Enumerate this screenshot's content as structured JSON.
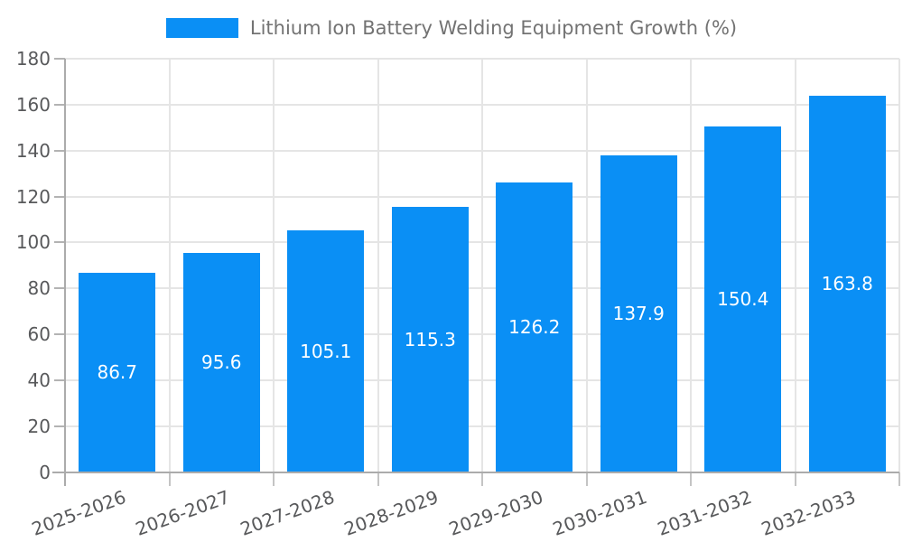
{
  "legend": {
    "label": "Lithium Ion Battery Welding Equipment Growth (%)"
  },
  "chart_data": {
    "type": "bar",
    "title": "",
    "series_name": "Lithium Ion Battery Welding Equipment Growth (%)",
    "categories": [
      "2025-2026",
      "2026-2027",
      "2027-2028",
      "2028-2029",
      "2029-2030",
      "2030-2031",
      "2031-2032",
      "2032-2033"
    ],
    "values": [
      86.7,
      95.6,
      105.1,
      115.3,
      126.2,
      137.9,
      150.4,
      163.8
    ],
    "ylim": [
      0,
      180
    ],
    "yticks": [
      0,
      20,
      40,
      60,
      80,
      100,
      120,
      140,
      160,
      180
    ],
    "grid": true,
    "legend_position": "top-center",
    "x_tick_rotation_deg": -20,
    "value_labels_inside_bars": true,
    "colors": {
      "bar": "#0a8ff5",
      "value_label": "#ffffff",
      "axis": "#ababab",
      "gridline": "#e5e5e5",
      "y_tick_mark": "#b3b3b3",
      "x_tick_mark": "#c4c4c4",
      "tick_label": "#58595b",
      "legend_text": "#737373",
      "background": "#ffffff"
    }
  }
}
